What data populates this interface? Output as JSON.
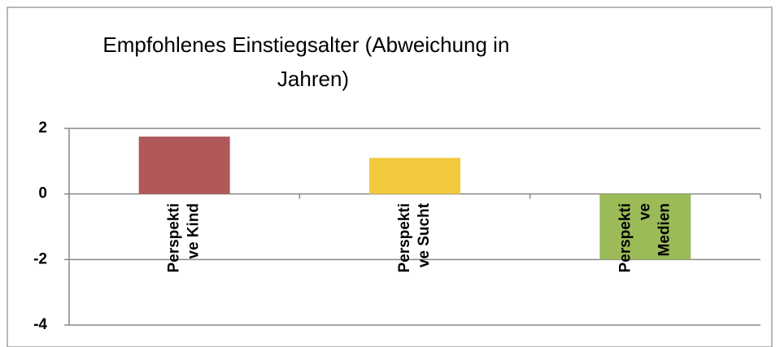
{
  "chart_data": {
    "type": "bar",
    "title": "Empfohlenes Einstiegsalter (Abweichung  in Jahren)",
    "categories": [
      "Perspektive Kind",
      "Perspektive Sucht",
      "Perspektive Medien"
    ],
    "values": [
      1.75,
      1.1,
      -2.0
    ],
    "colors": [
      "#b0585a",
      "#f0c93c",
      "#9bbb59"
    ],
    "ylim": [
      -4,
      2
    ],
    "yticks": [
      -4,
      -2,
      0,
      2
    ],
    "grid": true
  }
}
